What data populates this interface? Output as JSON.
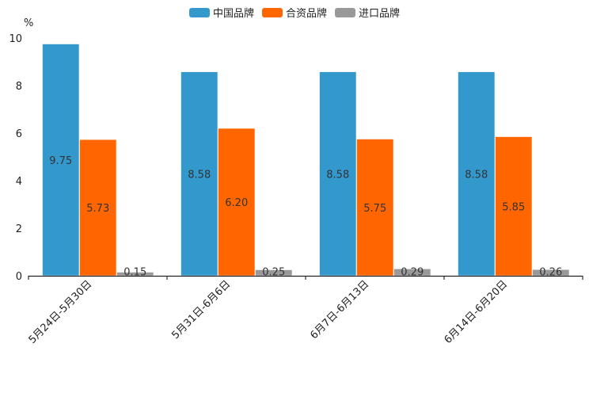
{
  "chart_data": {
    "type": "bar",
    "title": "",
    "xlabel": "",
    "ylabel": "%",
    "ylim": [
      0,
      10
    ],
    "yticks": [
      0,
      2,
      4,
      6,
      8,
      10
    ],
    "grid": false,
    "legend_position": "top-center",
    "categories": [
      "5月24日-5月30日",
      "5月31日-6月6日",
      "6月7日-6月13日",
      "6月14日-6月20日"
    ],
    "series": [
      {
        "name": "中国品牌",
        "color": "#3399cc",
        "values": [
          9.75,
          8.58,
          8.58,
          8.58
        ],
        "labels": [
          "9.75",
          "8.58",
          "8.58",
          "8.58"
        ]
      },
      {
        "name": "合资品牌",
        "color": "#ff6600",
        "values": [
          5.73,
          6.2,
          5.75,
          5.85
        ],
        "labels": [
          "5.73",
          "6.20",
          "5.75",
          "5.85"
        ]
      },
      {
        "name": "进口品牌",
        "color": "#999999",
        "values": [
          0.15,
          0.25,
          0.29,
          0.26
        ],
        "labels": [
          "0.15",
          "0.25",
          "0.29",
          "0.26"
        ]
      }
    ]
  }
}
